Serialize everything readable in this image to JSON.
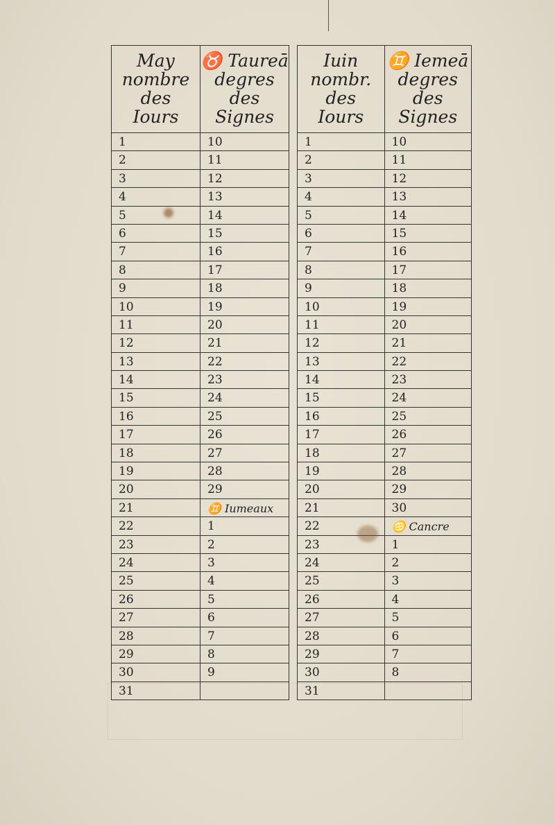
{
  "left_table": {
    "headers": [
      "May nombre des Iours",
      "♉ Taureā degres des Signes"
    ],
    "header_lines": [
      [
        "May",
        "nombre",
        "des",
        "Iours"
      ],
      [
        "♉ Taureā",
        "degres",
        "des",
        "Signes"
      ]
    ],
    "days": [
      "1",
      "2",
      "3",
      "4",
      "5",
      "6",
      "7",
      "8",
      "9",
      "10",
      "11",
      "12",
      "13",
      "14",
      "15",
      "16",
      "17",
      "18",
      "19",
      "20",
      "21",
      "22",
      "23",
      "24",
      "25",
      "26",
      "27",
      "28",
      "29",
      "30",
      "31"
    ],
    "degrees": [
      "10",
      "11",
      "12",
      "13",
      "14",
      "15",
      "16",
      "17",
      "18",
      "19",
      "20",
      "21",
      "22",
      "23",
      "24",
      "25",
      "26",
      "27",
      "28",
      "29",
      "♊ Iumeaux",
      "1",
      "2",
      "3",
      "4",
      "5",
      "6",
      "7",
      "8",
      "9",
      ""
    ]
  },
  "right_table": {
    "headers": [
      "Iuin nombr. des Iours",
      "♊ Iemeā degres des Signes"
    ],
    "header_lines": [
      [
        "Iuin",
        "nombr.",
        "des",
        "Iours"
      ],
      [
        "♊ Iemeā",
        "degres",
        "des",
        "Signes"
      ]
    ],
    "days": [
      "1",
      "2",
      "3",
      "4",
      "5",
      "6",
      "7",
      "8",
      "9",
      "10",
      "11",
      "12",
      "13",
      "14",
      "15",
      "16",
      "17",
      "18",
      "19",
      "20",
      "21",
      "22",
      "23",
      "24",
      "25",
      "26",
      "27",
      "28",
      "29",
      "30",
      "31"
    ],
    "degrees": [
      "10",
      "11",
      "12",
      "13",
      "14",
      "15",
      "16",
      "17",
      "18",
      "19",
      "20",
      "21",
      "22",
      "23",
      "24",
      "25",
      "26",
      "27",
      "28",
      "29",
      "30",
      "♋ Cancre",
      "1",
      "2",
      "3",
      "4",
      "5",
      "6",
      "7",
      "8",
      ""
    ]
  },
  "colors": {
    "paper": "#e6dfd0",
    "ink": "#222222",
    "stain": "#7a4a1a"
  }
}
